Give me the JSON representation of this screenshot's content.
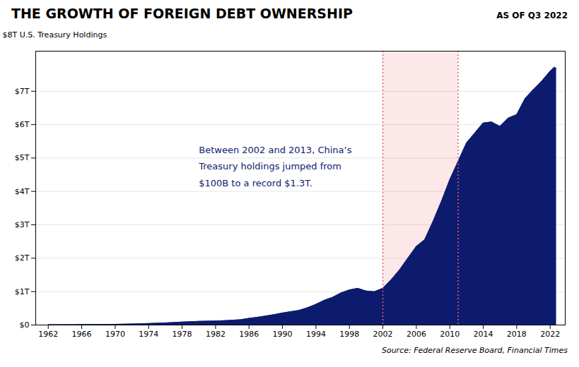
{
  "chart_data": {
    "type": "area",
    "title": "THE GROWTH OF FOREIGN DEBT OWNERSHIP",
    "subtitle": "AS OF Q3 2022",
    "y_label": "$8T U.S. Treasury Holdings",
    "source": "Source: Federal Reserve Board, Financial Times",
    "annotations": [
      {
        "text": "Between 2002 and 2013, China’s",
        "x": 1980,
        "y": 5.35
      },
      {
        "text": "Treasury holdings jumped from",
        "x": 1980,
        "y": 4.85
      },
      {
        "text": "$100B to a record $1.3T.",
        "x": 1980,
        "y": 4.35
      }
    ],
    "highlight": {
      "x1": 2002,
      "x2": 2011,
      "color": "#fce8e8",
      "line_color": "#e06060"
    },
    "color": "#0d1b6e",
    "grid": true,
    "x": [
      1962,
      1963,
      1964,
      1965,
      1966,
      1967,
      1968,
      1969,
      1970,
      1971,
      1972,
      1973,
      1974,
      1975,
      1976,
      1977,
      1978,
      1979,
      1980,
      1981,
      1982,
      1983,
      1984,
      1985,
      1986,
      1987,
      1988,
      1989,
      1990,
      1991,
      1992,
      1993,
      1994,
      1995,
      1996,
      1997,
      1998,
      1999,
      2000,
      2001,
      2002,
      2003,
      2004,
      2005,
      2006,
      2007,
      2008,
      2009,
      2010,
      2011,
      2012,
      2013,
      2014,
      2015,
      2016,
      2017,
      2018,
      2019,
      2020,
      2021,
      2022.0,
      2022.5,
      2022.75
    ],
    "values": [
      0.01,
      0.011,
      0.012,
      0.013,
      0.014,
      0.015,
      0.017,
      0.019,
      0.022,
      0.026,
      0.03,
      0.038,
      0.045,
      0.055,
      0.065,
      0.075,
      0.09,
      0.1,
      0.11,
      0.115,
      0.12,
      0.13,
      0.145,
      0.16,
      0.2,
      0.23,
      0.27,
      0.31,
      0.36,
      0.4,
      0.44,
      0.52,
      0.62,
      0.74,
      0.83,
      0.96,
      1.05,
      1.1,
      1.02,
      1.0,
      1.1,
      1.35,
      1.65,
      2.0,
      2.35,
      2.55,
      3.1,
      3.7,
      4.35,
      4.9,
      5.45,
      5.75,
      6.05,
      6.08,
      5.95,
      6.2,
      6.3,
      6.78,
      7.05,
      7.3,
      7.6,
      7.72,
      7.68
    ],
    "xlim": [
      1960.5,
      2023.8
    ],
    "xticks": [
      1962,
      1966,
      1970,
      1974,
      1978,
      1982,
      1986,
      1990,
      1994,
      1998,
      2002,
      2006,
      2010,
      2014,
      2018,
      2022
    ],
    "ylim": [
      0,
      8.2
    ],
    "yticks": [
      {
        "value": 0,
        "label": "$0"
      },
      {
        "value": 1,
        "label": "$1T"
      },
      {
        "value": 2,
        "label": "$2T"
      },
      {
        "value": 3,
        "label": "$3T"
      },
      {
        "value": 4,
        "label": "$4T"
      },
      {
        "value": 5,
        "label": "$5T"
      },
      {
        "value": 6,
        "label": "$6T"
      },
      {
        "value": 7,
        "label": "$7T"
      }
    ]
  }
}
